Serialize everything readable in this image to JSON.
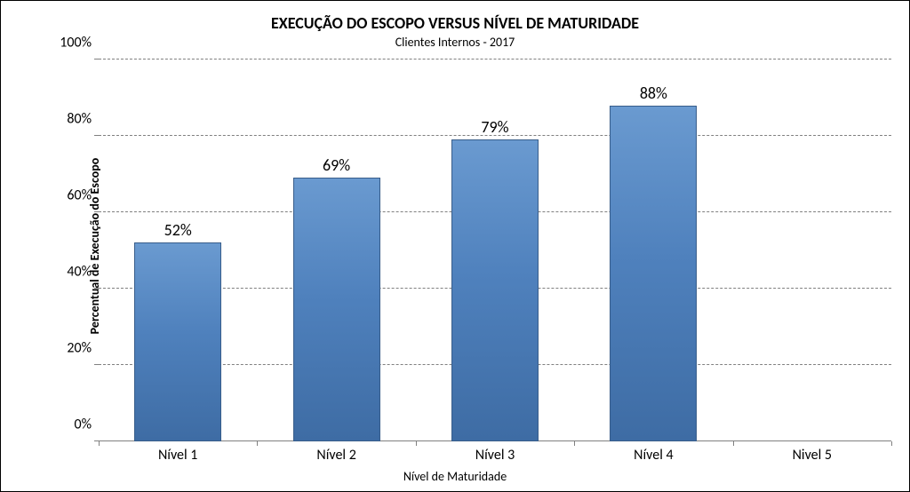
{
  "chart": {
    "type": "bar",
    "title": "EXECUÇÃO DO ESCOPO VERSUS NÍVEL DE MATURIDADE",
    "subtitle": "Clientes Internos  - 2017",
    "title_fontsize": 18,
    "subtitle_fontsize": 14,
    "ylabel": "Percentual de Execução do Escopo",
    "xlabel": "Nível de Maturidade",
    "axis_title_fontsize": 14,
    "tick_fontsize": 16,
    "data_label_fontsize": 18,
    "categories": [
      "Nível 1",
      "Nível 2",
      "Nível 3",
      "Nível 4",
      "Nivel 5"
    ],
    "values": [
      52,
      69,
      79,
      88,
      0
    ],
    "value_labels": [
      "52%",
      "69%",
      "79%",
      "88%",
      ""
    ],
    "ylim": [
      0,
      100
    ],
    "ytick_step": 20,
    "ytick_labels": [
      "0%",
      "20%",
      "40%",
      "60%",
      "80%",
      "100%"
    ],
    "bar_fill": "#4f81bd",
    "bar_border": "#385d8a",
    "bar_gradient_top": "#6a9ad0",
    "bar_gradient_bottom": "#3e6ca4",
    "bar_width_percent": 11,
    "slot_width_percent": 20,
    "grid_color": "#808080",
    "axis_line_color": "#808080",
    "background_color": "#ffffff",
    "text_color": "#000000"
  }
}
